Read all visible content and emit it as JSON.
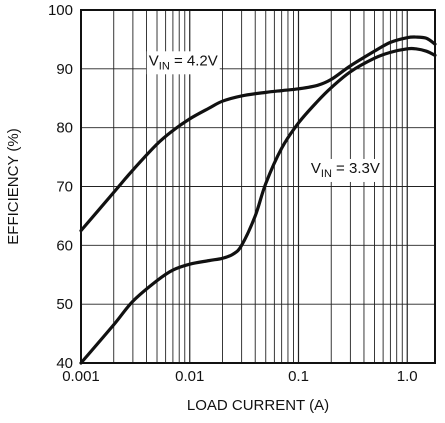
{
  "chart_data": {
    "type": "line",
    "title": "",
    "xlabel": "LOAD CURRENT (A)",
    "ylabel": "EFFICIENCY (%)",
    "xscale": "log",
    "xlim": [
      0.001,
      1.8
    ],
    "ylim": [
      40,
      100
    ],
    "grid": true,
    "x_ticks": [
      {
        "value": 0.001,
        "label": "0.001"
      },
      {
        "value": 0.01,
        "label": "0.01"
      },
      {
        "value": 0.1,
        "label": "0.1"
      },
      {
        "value": 1.0,
        "label": "1.0"
      }
    ],
    "y_ticks": [
      40,
      50,
      60,
      70,
      80,
      90,
      100
    ],
    "series": [
      {
        "annotation": {
          "main": "V",
          "sub": "IN",
          "rest": " = 4.2V",
          "x": 0.0042,
          "y": 90.6
        },
        "x": [
          0.001,
          0.002,
          0.003,
          0.005,
          0.007,
          0.01,
          0.015,
          0.02,
          0.03,
          0.05,
          0.07,
          0.1,
          0.15,
          0.2,
          0.3,
          0.5,
          0.7,
          1.0,
          1.2,
          1.5,
          1.8
        ],
        "y": [
          62.5,
          69.0,
          72.8,
          77.2,
          79.5,
          81.5,
          83.3,
          84.5,
          85.4,
          86.0,
          86.3,
          86.6,
          87.2,
          88.2,
          90.5,
          93.0,
          94.5,
          95.3,
          95.4,
          95.2,
          94.2
        ]
      },
      {
        "annotation": {
          "main": "V",
          "sub": "IN",
          "rest": " = 3.3V",
          "x": 0.13,
          "y": 72.3
        },
        "x": [
          0.001,
          0.002,
          0.003,
          0.005,
          0.007,
          0.01,
          0.015,
          0.02,
          0.025,
          0.03,
          0.04,
          0.05,
          0.07,
          0.1,
          0.15,
          0.2,
          0.3,
          0.5,
          0.7,
          1.0,
          1.2,
          1.5,
          1.8
        ],
        "y": [
          40.0,
          46.5,
          50.5,
          54.0,
          55.8,
          56.8,
          57.4,
          57.8,
          58.5,
          60.0,
          65.0,
          70.5,
          76.5,
          80.8,
          84.5,
          86.8,
          89.5,
          91.8,
          92.8,
          93.4,
          93.4,
          93.0,
          92.3
        ]
      }
    ]
  }
}
